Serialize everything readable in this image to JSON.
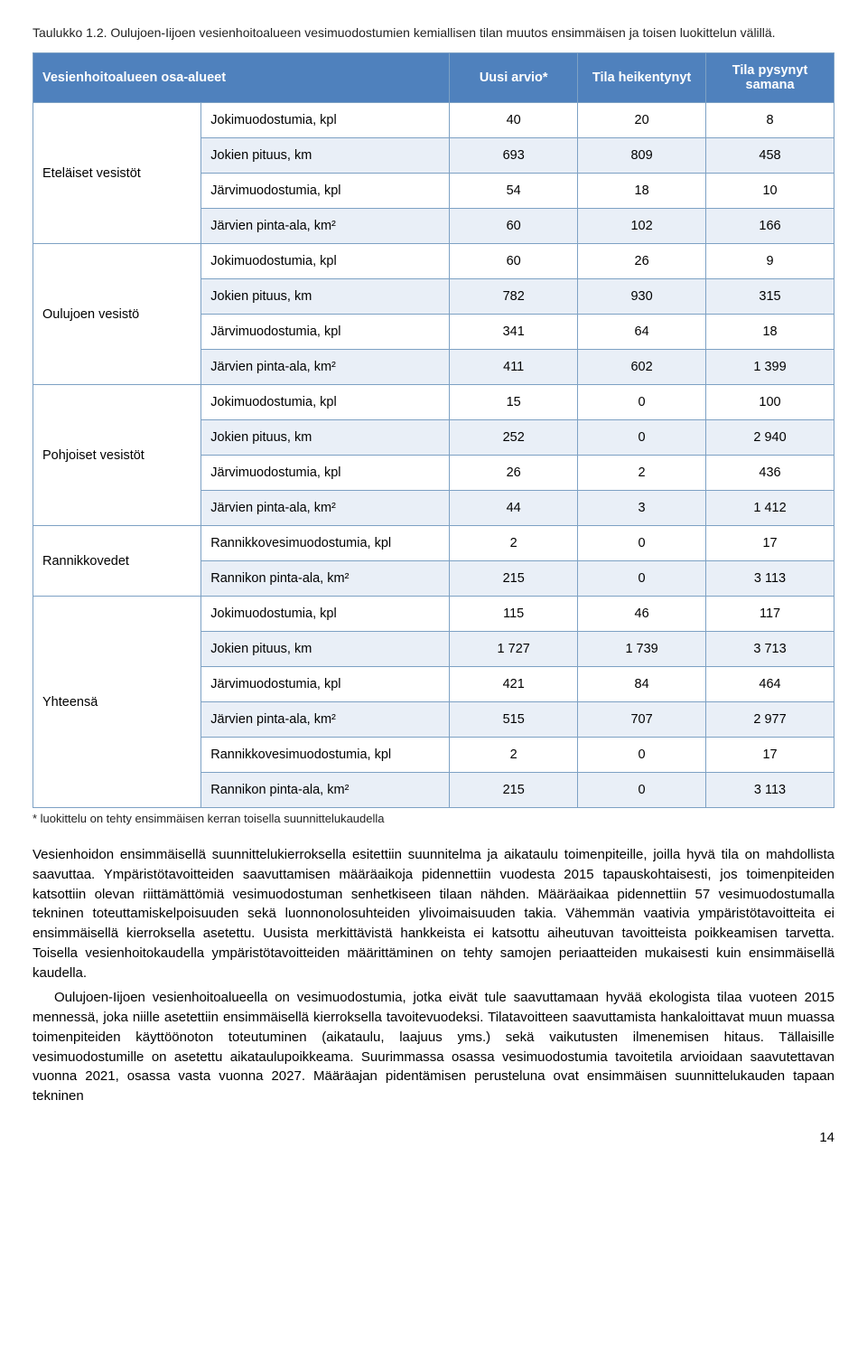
{
  "caption": "Taulukko 1.2. Oulujoen-Iijoen vesienhoitoalueen vesimuodostumien kemiallisen tilan muutos ensimmäisen ja toisen luokittelun välillä.",
  "header": {
    "group": "Vesienhoitoalueen osa-alueet",
    "col1": "Uusi arvio*",
    "col2": "Tila heiken­tynyt",
    "col3": "Tila pysynyt samana"
  },
  "groups": [
    {
      "name": "Eteläiset vesistöt",
      "rows": [
        {
          "label": "Jokimuodostumia, kpl",
          "v1": "40",
          "v2": "20",
          "v3": "8"
        },
        {
          "label": "Jokien pituus, km",
          "v1": "693",
          "v2": "809",
          "v3": "458"
        },
        {
          "label": "Järvimuodostumia, kpl",
          "v1": "54",
          "v2": "18",
          "v3": "10"
        },
        {
          "label": "Järvien pinta-ala, km²",
          "v1": "60",
          "v2": "102",
          "v3": "166"
        }
      ]
    },
    {
      "name": "Oulujoen vesistö",
      "rows": [
        {
          "label": "Jokimuodostumia, kpl",
          "v1": "60",
          "v2": "26",
          "v3": "9"
        },
        {
          "label": "Jokien pituus, km",
          "v1": "782",
          "v2": "930",
          "v3": "315"
        },
        {
          "label": "Järvimuodostumia, kpl",
          "v1": "341",
          "v2": "64",
          "v3": "18"
        },
        {
          "label": "Järvien pinta-ala, km²",
          "v1": "411",
          "v2": "602",
          "v3": "1 399"
        }
      ]
    },
    {
      "name": "Pohjoiset vesistöt",
      "rows": [
        {
          "label": "Jokimuodostumia, kpl",
          "v1": "15",
          "v2": "0",
          "v3": "100"
        },
        {
          "label": "Jokien pituus, km",
          "v1": "252",
          "v2": "0",
          "v3": "2 940"
        },
        {
          "label": "Järvimuodostumia, kpl",
          "v1": "26",
          "v2": "2",
          "v3": "436"
        },
        {
          "label": "Järvien pinta-ala, km²",
          "v1": "44",
          "v2": "3",
          "v3": "1 412"
        }
      ]
    },
    {
      "name": "Rannikkovedet",
      "rows": [
        {
          "label": "Rannikkovesimuodostumia, kpl",
          "v1": "2",
          "v2": "0",
          "v3": "17"
        },
        {
          "label": "Rannikon pinta-ala, km²",
          "v1": "215",
          "v2": "0",
          "v3": "3 113"
        }
      ]
    },
    {
      "name": "Yhteensä",
      "rows": [
        {
          "label": "Jokimuodostumia, kpl",
          "v1": "115",
          "v2": "46",
          "v3": "117"
        },
        {
          "label": "Jokien pituus, km",
          "v1": "1 727",
          "v2": "1 739",
          "v3": "3 713"
        },
        {
          "label": "Järvimuodostumia, kpl",
          "v1": "421",
          "v2": "84",
          "v3": "464"
        },
        {
          "label": "Järvien pinta-ala, km²",
          "v1": "515",
          "v2": "707",
          "v3": "2 977"
        },
        {
          "label": "Rannikkovesimuodostumia, kpl",
          "v1": "2",
          "v2": "0",
          "v3": "17"
        },
        {
          "label": "Rannikon pinta-ala, km²",
          "v1": "215",
          "v2": "0",
          "v3": "3 113"
        }
      ]
    }
  ],
  "footnote": "* luokittelu on tehty ensimmäisen kerran toisella suunnittelukaudella",
  "paragraph1": "Vesienhoidon ensimmäisellä suunnittelukierroksella esitettiin suunnitelma ja aikataulu toimenpiteille, joilla hyvä tila on mahdollista saavuttaa. Ympäristötavoitteiden saavuttamisen määräaikoja pidennettiin vuodesta 2015 tapauskohtaisesti, jos toimenpiteiden katsottiin olevan riittämättömiä vesimuodostuman senhetkiseen tilaan nähden. Määräaikaa pidennettiin 57 vesimuodostumalla tekninen toteuttamiskelpoisuuden sekä luonnonolosuhteiden ylivoimaisuuden takia. Vähemmän vaativia ympäristötavoitteita ei ensimmäisellä kierroksella asetettu. Uusista merkittävistä hankkeista ei katsottu aiheutuvan tavoitteista poikkeamisen tarvetta. Toisella vesienhoitokaudella ympäristötavoitteiden määrittäminen on tehty samojen periaatteiden mukaisesti kuin ensimmäisellä kaudella.",
  "paragraph2": "Oulujoen-Iijoen vesienhoitoalueella on vesimuodostumia, jotka eivät tule saavuttamaan hyvää ekologista tilaa vuoteen 2015 mennessä, joka niille asetettiin ensimmäisellä kierroksella tavoitevuodeksi. Tilatavoitteen saavuttamista hankaloittavat muun muassa toimenpiteiden käyttöönoton toteutuminen (aikataulu, laajuus yms.) sekä vaikutusten ilmenemisen hitaus. Tällaisille vesimuodostumille on asetettu aikataulupoikkeama. Suurimmassa osassa vesimuodostumia tavoitetila arvioidaan saavutettavan vuonna 2021, osassa vasta vuonna 2027. Määräajan pidentämisen perusteluna ovat ensimmäisen suunnittelukauden tapaan tekninen",
  "pagenum": "14"
}
